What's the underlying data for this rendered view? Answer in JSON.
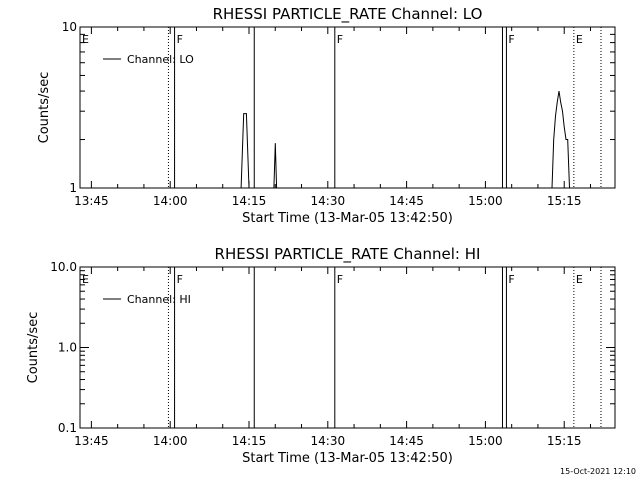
{
  "footer": "15-Oct-2021 12:10",
  "chart_data": [
    {
      "type": "line",
      "title": "RHESSI PARTICLE_RATE Channel: LO",
      "xlabel": "Start Time (13-Mar-05 13:42:50)",
      "ylabel": "Counts/sec",
      "y_scale": "log",
      "ylim": [
        1,
        10
      ],
      "y_ticks": [
        {
          "value": 1,
          "label": "1"
        },
        {
          "value": 10,
          "label": "10"
        }
      ],
      "xlim": [
        "13:42:50",
        "15:24:40"
      ],
      "x_ticks": [
        "13:45",
        "14:00",
        "14:15",
        "14:30",
        "14:45",
        "15:00",
        "15:15"
      ],
      "legend": {
        "label": "Channel: LO",
        "placement": "top-left"
      },
      "markers": [
        {
          "time": "13:42:50",
          "label": "E",
          "style": "solid"
        },
        {
          "time": "13:59:40",
          "label": "",
          "style": "dotted"
        },
        {
          "time": "14:00:50",
          "label": "F",
          "style": "solid"
        },
        {
          "time": "14:16:00",
          "label": "",
          "style": "solid"
        },
        {
          "time": "14:31:20",
          "label": "F",
          "style": "solid"
        },
        {
          "time": "15:03:15",
          "label": "",
          "style": "solid"
        },
        {
          "time": "15:04:00",
          "label": "F",
          "style": "solid"
        },
        {
          "time": "15:16:50",
          "label": "E",
          "style": "dotted"
        },
        {
          "time": "15:22:00",
          "label": "",
          "style": "dotted"
        }
      ],
      "series": [
        {
          "name": "Channel: LO",
          "segments": [
            [
              {
                "t": "14:13:30",
                "y": 1
              },
              {
                "t": "14:14:00",
                "y": 2.9
              },
              {
                "t": "14:14:30",
                "y": 2.9
              },
              {
                "t": "14:15:00",
                "y": 1
              }
            ],
            [
              {
                "t": "14:19:45",
                "y": 1
              },
              {
                "t": "14:20:00",
                "y": 1.9
              },
              {
                "t": "14:20:15",
                "y": 1
              }
            ],
            [
              {
                "t": "15:12:40",
                "y": 1
              },
              {
                "t": "15:13:00",
                "y": 2.0
              },
              {
                "t": "15:13:20",
                "y": 2.8
              },
              {
                "t": "15:13:40",
                "y": 3.4
              },
              {
                "t": "15:14:00",
                "y": 4.0
              },
              {
                "t": "15:14:20",
                "y": 3.4
              },
              {
                "t": "15:14:40",
                "y": 3.0
              },
              {
                "t": "15:15:00",
                "y": 2.4
              },
              {
                "t": "15:15:20",
                "y": 2.0
              },
              {
                "t": "15:15:40",
                "y": 2.0
              },
              {
                "t": "15:16:00",
                "y": 1
              }
            ]
          ]
        }
      ]
    },
    {
      "type": "line",
      "title": "RHESSI PARTICLE_RATE Channel: HI",
      "xlabel": "Start Time (13-Mar-05 13:42:50)",
      "ylabel": "Counts/sec",
      "y_scale": "log",
      "ylim": [
        0.1,
        10
      ],
      "y_ticks": [
        {
          "value": 0.1,
          "label": "0.1"
        },
        {
          "value": 1,
          "label": "1.0"
        },
        {
          "value": 10,
          "label": "10.0"
        }
      ],
      "xlim": [
        "13:42:50",
        "15:24:40"
      ],
      "x_ticks": [
        "13:45",
        "14:00",
        "14:15",
        "14:30",
        "14:45",
        "15:00",
        "15:15"
      ],
      "legend": {
        "label": "Channel: HI",
        "placement": "top-left"
      },
      "markers": [
        {
          "time": "13:42:50",
          "label": "E",
          "style": "solid"
        },
        {
          "time": "13:59:40",
          "label": "",
          "style": "dotted"
        },
        {
          "time": "14:00:50",
          "label": "F",
          "style": "solid"
        },
        {
          "time": "14:16:00",
          "label": "",
          "style": "solid"
        },
        {
          "time": "14:31:20",
          "label": "F",
          "style": "solid"
        },
        {
          "time": "15:03:15",
          "label": "",
          "style": "solid"
        },
        {
          "time": "15:04:00",
          "label": "F",
          "style": "solid"
        },
        {
          "time": "15:16:50",
          "label": "E",
          "style": "dotted"
        },
        {
          "time": "15:22:00",
          "label": "",
          "style": "dotted"
        }
      ],
      "series": [
        {
          "name": "Channel: HI",
          "segments": []
        }
      ]
    }
  ]
}
